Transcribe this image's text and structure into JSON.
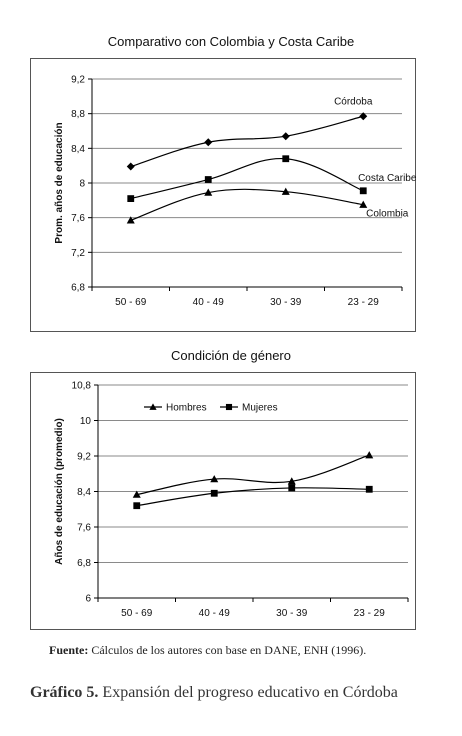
{
  "chart_data": [
    {
      "type": "line",
      "title": "Comparativo con Colombia y Costa Caribe",
      "ylabel": "Prom. años de educación",
      "xlabel": "",
      "categories": [
        "50 - 69",
        "40 - 49",
        "30 - 39",
        "23 - 29"
      ],
      "ylim": [
        6.8,
        9.2
      ],
      "yticks": [
        "9,2",
        "8,8",
        "8,4",
        "8",
        "7,6",
        "7,2",
        "6,8"
      ],
      "ytick_values": [
        9.2,
        8.8,
        8.4,
        8.0,
        7.6,
        7.2,
        6.8
      ],
      "grid": true,
      "legend": "inline labels",
      "series": [
        {
          "name": "Córdoba",
          "marker": "diamond",
          "values": [
            8.19,
            8.47,
            8.54,
            8.77
          ]
        },
        {
          "name": "Costa Caribe",
          "marker": "square",
          "values": [
            7.82,
            8.04,
            8.28,
            7.91
          ]
        },
        {
          "name": "Colombia",
          "marker": "triangle",
          "values": [
            7.57,
            7.89,
            7.9,
            7.75
          ]
        }
      ]
    },
    {
      "type": "line",
      "title": "Condición de género",
      "ylabel": "Años de educación (promedio)",
      "xlabel": "",
      "categories": [
        "50 - 69",
        "40 - 49",
        "30 - 39",
        "23 - 29"
      ],
      "ylim": [
        6,
        10.8
      ],
      "yticks": [
        "10,8",
        "10",
        "9,2",
        "8,4",
        "7,6",
        "6,8",
        "6"
      ],
      "ytick_values": [
        10.8,
        10.0,
        9.2,
        8.4,
        7.6,
        6.8,
        6.0
      ],
      "grid": true,
      "legend": "top-left",
      "series": [
        {
          "name": "Hombres",
          "marker": "triangle",
          "values": [
            8.33,
            8.68,
            8.63,
            9.22
          ]
        },
        {
          "name": "Mujeres",
          "marker": "square",
          "values": [
            8.08,
            8.36,
            8.48,
            8.45
          ]
        }
      ]
    }
  ],
  "source": {
    "label": "Fuente:",
    "text": "Cálculos de los autores con base en DANE, ENH (1996)."
  },
  "caption": {
    "label": "Gráfico 5.",
    "text": "Expansión del progreso educativo en Córdoba"
  }
}
